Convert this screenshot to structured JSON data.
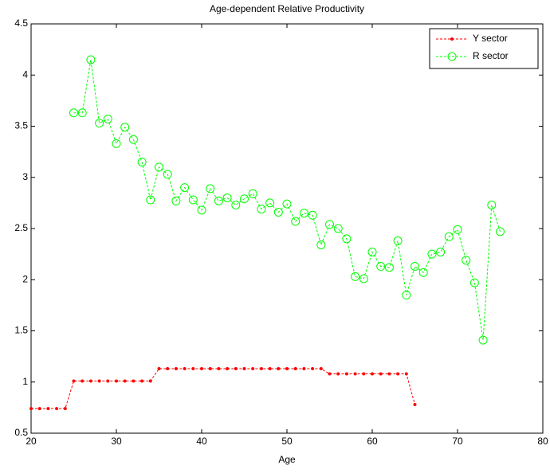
{
  "chart_data": {
    "type": "line",
    "title": "Age-dependent Relative Productivity",
    "xlabel": "Age",
    "xlim": [
      20,
      80
    ],
    "xticks": [
      20,
      30,
      40,
      50,
      60,
      70,
      80
    ],
    "ylim": [
      0.5,
      4.5
    ],
    "yticks": [
      0.5,
      1,
      1.5,
      2,
      2.5,
      3,
      3.5,
      4,
      4.5
    ],
    "legend": "top-right",
    "series": [
      {
        "name": "Y sector",
        "color": "#ff0000",
        "marker": "dot",
        "x": [
          20,
          21,
          22,
          23,
          24,
          25,
          26,
          27,
          28,
          29,
          30,
          31,
          32,
          33,
          34,
          35,
          36,
          37,
          38,
          39,
          40,
          41,
          42,
          43,
          44,
          45,
          46,
          47,
          48,
          49,
          50,
          51,
          52,
          53,
          54,
          55,
          56,
          57,
          58,
          59,
          60,
          61,
          62,
          63,
          64,
          65
        ],
        "values": [
          0.74,
          0.74,
          0.74,
          0.74,
          0.74,
          1.01,
          1.01,
          1.01,
          1.01,
          1.01,
          1.01,
          1.01,
          1.01,
          1.01,
          1.01,
          1.13,
          1.13,
          1.13,
          1.13,
          1.13,
          1.13,
          1.13,
          1.13,
          1.13,
          1.13,
          1.13,
          1.13,
          1.13,
          1.13,
          1.13,
          1.13,
          1.13,
          1.13,
          1.13,
          1.13,
          1.08,
          1.08,
          1.08,
          1.08,
          1.08,
          1.08,
          1.08,
          1.08,
          1.08,
          1.08,
          0.78
        ]
      },
      {
        "name": "R sector",
        "color": "#00ff00",
        "marker": "circle",
        "x": [
          25,
          26,
          27,
          28,
          29,
          30,
          31,
          32,
          33,
          34,
          35,
          36,
          37,
          38,
          39,
          40,
          41,
          42,
          43,
          44,
          45,
          46,
          47,
          48,
          49,
          50,
          51,
          52,
          53,
          54,
          55,
          56,
          57,
          58,
          59,
          60,
          61,
          62,
          63,
          64,
          65,
          66,
          67,
          68,
          69,
          70,
          71,
          72,
          73,
          74,
          75
        ],
        "values": [
          3.63,
          3.63,
          4.15,
          3.53,
          3.57,
          3.33,
          3.49,
          3.37,
          3.15,
          2.78,
          3.1,
          3.03,
          2.77,
          2.9,
          2.78,
          2.68,
          2.89,
          2.77,
          2.8,
          2.73,
          2.79,
          2.84,
          2.69,
          2.75,
          2.66,
          2.74,
          2.57,
          2.65,
          2.63,
          2.34,
          2.54,
          2.5,
          2.4,
          2.03,
          2.01,
          2.27,
          2.13,
          2.12,
          2.38,
          1.85,
          2.13,
          2.07,
          2.25,
          2.27,
          2.42,
          2.49,
          2.19,
          1.97,
          1.41,
          2.73,
          2.47
        ]
      }
    ]
  }
}
